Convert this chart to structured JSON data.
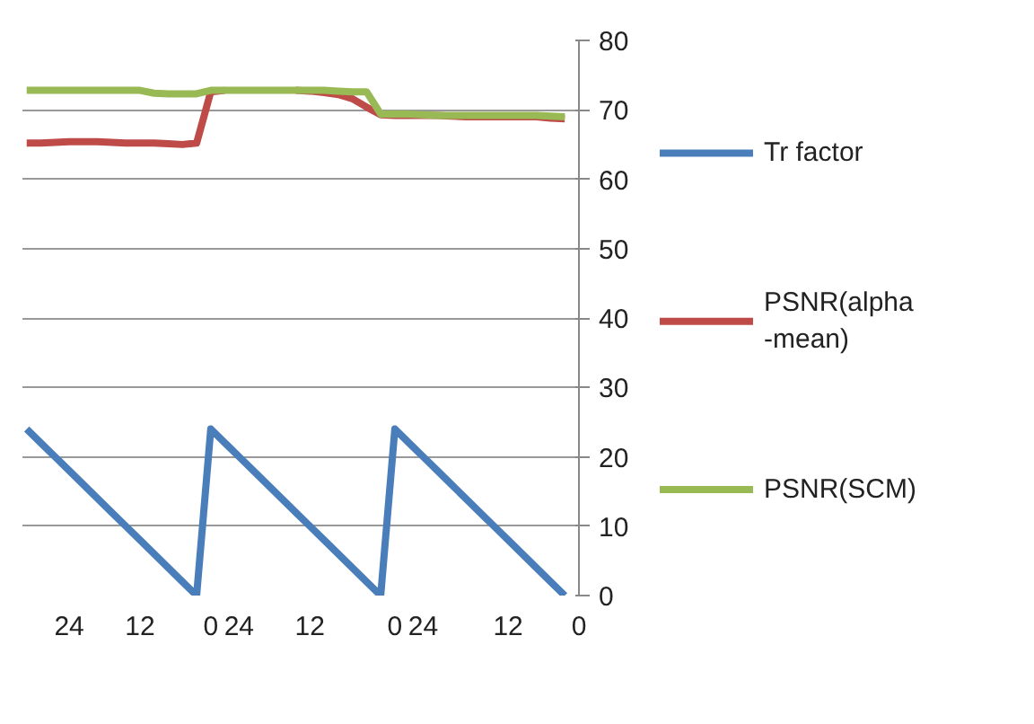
{
  "chart_data": {
    "type": "line",
    "categories": [
      null,
      null,
      null,
      "24",
      null,
      null,
      null,
      null,
      "12",
      null,
      null,
      null,
      null,
      "0",
      null,
      "24",
      null,
      null,
      null,
      null,
      "12",
      null,
      null,
      null,
      null,
      null,
      "0",
      null,
      "24",
      null,
      null,
      null,
      null,
      null,
      "12",
      null,
      null,
      null,
      null,
      "0"
    ],
    "series": [
      {
        "name": "Tr factor",
        "color": "#4a7ebb",
        "values": [
          24,
          22,
          20,
          18,
          16,
          14,
          12,
          10,
          8,
          6,
          4,
          2,
          0,
          24,
          22,
          20,
          18,
          16,
          14,
          12,
          10,
          8,
          6,
          4,
          2,
          0,
          24,
          22,
          20,
          18,
          16,
          14,
          12,
          10,
          8,
          6,
          4,
          2,
          0,
          null
        ]
      },
      {
        "name": "PSNR(alpha\n-mean)",
        "color": "#be4b48",
        "values": [
          65.2,
          65.2,
          65.3,
          65.4,
          65.4,
          65.4,
          65.3,
          65.2,
          65.2,
          65.2,
          65.1,
          65.0,
          65.2,
          72.6,
          72.8,
          null,
          null,
          null,
          null,
          72.8,
          72.7,
          72.5,
          72.2,
          71.6,
          70.4,
          69.3,
          69.2,
          69.2,
          69.2,
          69.2,
          69.1,
          69.0,
          69.0,
          69.0,
          69.0,
          69.0,
          69.0,
          68.8,
          68.7,
          null
        ]
      },
      {
        "name": "PSNR(SCM)",
        "color": "#98b954",
        "values": [
          72.8,
          72.8,
          72.8,
          72.8,
          72.8,
          72.8,
          72.8,
          72.8,
          72.8,
          72.4,
          72.3,
          72.3,
          72.3,
          72.8,
          72.8,
          72.8,
          72.8,
          72.8,
          72.8,
          72.8,
          72.8,
          72.8,
          72.7,
          72.6,
          72.6,
          69.4,
          69.4,
          69.4,
          69.3,
          69.2,
          69.2,
          69.2,
          69.2,
          69.2,
          69.2,
          69.2,
          69.2,
          69.1,
          69.0,
          null
        ]
      }
    ],
    "ylim": [
      0,
      80
    ],
    "yticks": [
      0,
      10,
      20,
      30,
      40,
      50,
      60,
      70,
      80
    ],
    "grid": "y",
    "legend": "right",
    "marker": "none",
    "line_style": "solid"
  }
}
